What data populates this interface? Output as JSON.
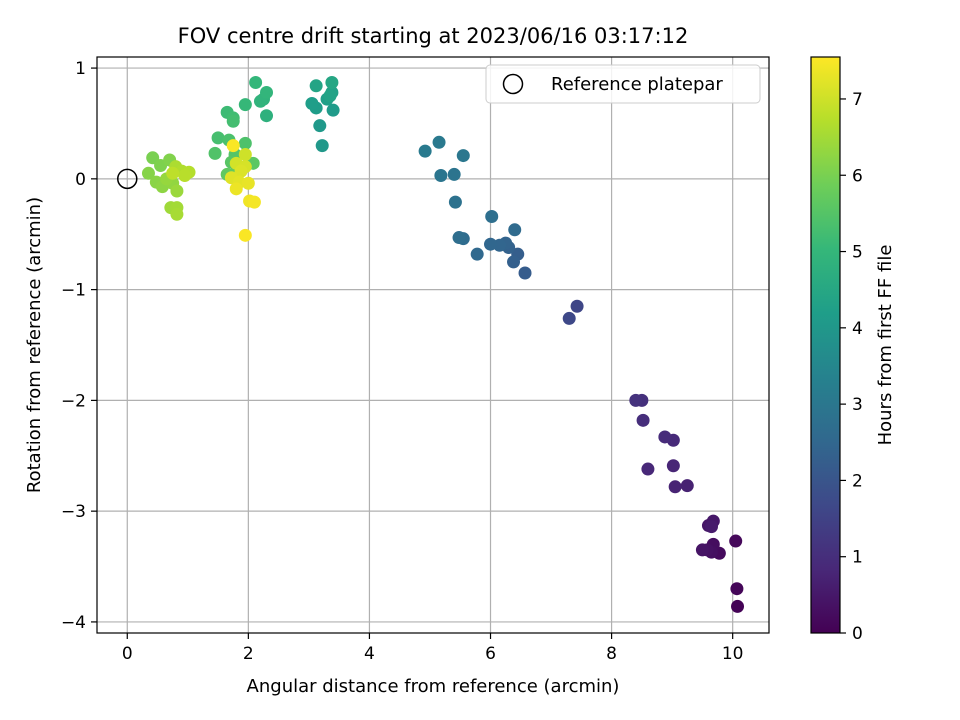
{
  "chart_data": {
    "type": "scatter",
    "title": "FOV centre drift starting at 2023/06/16 03:17:12",
    "xlabel": "Angular distance from reference (arcmin)",
    "ylabel": "Rotation from reference (arcmin)",
    "xlim": [
      -0.5,
      10.6
    ],
    "ylim": [
      -4.1,
      1.1
    ],
    "xticks": [
      0,
      2,
      4,
      6,
      8,
      10
    ],
    "xtick_labels": [
      "0",
      "2",
      "4",
      "6",
      "8",
      "10"
    ],
    "yticks": [
      1,
      0,
      -1,
      -2,
      -3,
      -4
    ],
    "ytick_labels": [
      "1",
      "0",
      "−1",
      "−2",
      "−3",
      "−4"
    ],
    "grid": true,
    "legend": {
      "location": "top-right",
      "entries": [
        {
          "label": "Reference platepar",
          "marker": "open-circle"
        }
      ]
    },
    "reference_point": {
      "x": 0,
      "y": 0
    },
    "colorbar": {
      "label": "Hours from first FF file",
      "colormap": "viridis",
      "range": [
        0,
        7.55
      ],
      "ticks": [
        0,
        1,
        2,
        3,
        4,
        5,
        6,
        7
      ],
      "tick_labels": [
        "0",
        "1",
        "2",
        "3",
        "4",
        "5",
        "6",
        "7"
      ]
    },
    "colormap_stops": [
      "#440154",
      "#482878",
      "#3e4989",
      "#31688e",
      "#26828e",
      "#1f9e89",
      "#35b779",
      "#6ece58",
      "#b5de2b",
      "#fde725"
    ],
    "series": [
      {
        "color_by": "hours",
        "points": [
          {
            "x": 10.08,
            "y": -3.86,
            "t": 0.05
          },
          {
            "x": 10.07,
            "y": -3.7,
            "t": 0.1
          },
          {
            "x": 10.05,
            "y": -3.27,
            "t": 0.15
          },
          {
            "x": 9.78,
            "y": -3.38,
            "t": 0.2
          },
          {
            "x": 9.68,
            "y": -3.3,
            "t": 0.25
          },
          {
            "x": 9.65,
            "y": -3.37,
            "t": 0.3
          },
          {
            "x": 9.58,
            "y": -3.35,
            "t": 0.35
          },
          {
            "x": 9.5,
            "y": -3.35,
            "t": 0.4
          },
          {
            "x": 9.6,
            "y": -3.13,
            "t": 0.45
          },
          {
            "x": 9.68,
            "y": -3.09,
            "t": 0.5
          },
          {
            "x": 9.65,
            "y": -3.14,
            "t": 0.55
          },
          {
            "x": 9.25,
            "y": -2.77,
            "t": 0.7
          },
          {
            "x": 9.05,
            "y": -2.78,
            "t": 0.75
          },
          {
            "x": 9.02,
            "y": -2.59,
            "t": 0.8
          },
          {
            "x": 8.6,
            "y": -2.62,
            "t": 0.85
          },
          {
            "x": 9.02,
            "y": -2.36,
            "t": 0.9
          },
          {
            "x": 8.88,
            "y": -2.33,
            "t": 0.95
          },
          {
            "x": 8.52,
            "y": -2.18,
            "t": 1.0
          },
          {
            "x": 8.5,
            "y": -2.0,
            "t": 1.05
          },
          {
            "x": 8.4,
            "y": -2.0,
            "t": 1.1
          },
          {
            "x": 7.43,
            "y": -1.15,
            "t": 1.6
          },
          {
            "x": 7.3,
            "y": -1.26,
            "t": 1.65
          },
          {
            "x": 6.57,
            "y": -0.85,
            "t": 2.2
          },
          {
            "x": 6.45,
            "y": -0.68,
            "t": 2.25
          },
          {
            "x": 6.38,
            "y": -0.75,
            "t": 2.3
          },
          {
            "x": 6.3,
            "y": -0.62,
            "t": 2.35
          },
          {
            "x": 6.25,
            "y": -0.58,
            "t": 2.4
          },
          {
            "x": 6.15,
            "y": -0.6,
            "t": 2.45
          },
          {
            "x": 6.0,
            "y": -0.59,
            "t": 2.5
          },
          {
            "x": 5.78,
            "y": -0.68,
            "t": 2.55
          },
          {
            "x": 6.4,
            "y": -0.46,
            "t": 2.6
          },
          {
            "x": 5.55,
            "y": -0.54,
            "t": 2.65
          },
          {
            "x": 5.48,
            "y": -0.53,
            "t": 2.7
          },
          {
            "x": 6.02,
            "y": -0.34,
            "t": 2.75
          },
          {
            "x": 5.42,
            "y": -0.21,
            "t": 2.85
          },
          {
            "x": 5.4,
            "y": 0.04,
            "t": 2.9
          },
          {
            "x": 5.18,
            "y": 0.03,
            "t": 2.95
          },
          {
            "x": 5.55,
            "y": 0.21,
            "t": 3.0
          },
          {
            "x": 5.15,
            "y": 0.33,
            "t": 3.05
          },
          {
            "x": 4.92,
            "y": 0.25,
            "t": 3.1
          },
          {
            "x": 3.22,
            "y": 0.3,
            "t": 4.0
          },
          {
            "x": 3.18,
            "y": 0.48,
            "t": 4.05
          },
          {
            "x": 3.4,
            "y": 0.62,
            "t": 4.1
          },
          {
            "x": 3.12,
            "y": 0.64,
            "t": 4.15
          },
          {
            "x": 3.05,
            "y": 0.68,
            "t": 4.2
          },
          {
            "x": 3.3,
            "y": 0.72,
            "t": 4.25
          },
          {
            "x": 3.38,
            "y": 0.78,
            "t": 4.3
          },
          {
            "x": 3.35,
            "y": 0.75,
            "t": 4.35
          },
          {
            "x": 3.12,
            "y": 0.84,
            "t": 4.4
          },
          {
            "x": 3.38,
            "y": 0.87,
            "t": 4.45
          },
          {
            "x": 2.3,
            "y": 0.57,
            "t": 4.8
          },
          {
            "x": 2.25,
            "y": 0.72,
            "t": 4.85
          },
          {
            "x": 2.2,
            "y": 0.7,
            "t": 4.9
          },
          {
            "x": 2.3,
            "y": 0.78,
            "t": 4.95
          },
          {
            "x": 2.12,
            "y": 0.87,
            "t": 5.0
          },
          {
            "x": 1.95,
            "y": 0.67,
            "t": 5.05
          },
          {
            "x": 1.65,
            "y": 0.6,
            "t": 5.15
          },
          {
            "x": 1.75,
            "y": 0.55,
            "t": 5.2
          },
          {
            "x": 1.75,
            "y": 0.52,
            "t": 5.25
          },
          {
            "x": 1.5,
            "y": 0.37,
            "t": 5.3
          },
          {
            "x": 1.68,
            "y": 0.35,
            "t": 5.35
          },
          {
            "x": 1.95,
            "y": 0.32,
            "t": 5.4
          },
          {
            "x": 1.45,
            "y": 0.23,
            "t": 5.45
          },
          {
            "x": 1.78,
            "y": 0.22,
            "t": 5.5
          },
          {
            "x": 1.72,
            "y": 0.15,
            "t": 5.55
          },
          {
            "x": 2.08,
            "y": 0.14,
            "t": 5.6
          },
          {
            "x": 1.65,
            "y": 0.04,
            "t": 5.65
          },
          {
            "x": 1.8,
            "y": 0.06,
            "t": 5.7
          },
          {
            "x": 0.42,
            "y": 0.19,
            "t": 6.0
          },
          {
            "x": 0.55,
            "y": 0.12,
            "t": 6.05
          },
          {
            "x": 0.7,
            "y": 0.17,
            "t": 6.1
          },
          {
            "x": 0.35,
            "y": 0.05,
            "t": 6.15
          },
          {
            "x": 0.48,
            "y": -0.03,
            "t": 6.2
          },
          {
            "x": 0.58,
            "y": -0.07,
            "t": 6.25
          },
          {
            "x": 0.75,
            "y": -0.04,
            "t": 6.3
          },
          {
            "x": 0.65,
            "y": 0.0,
            "t": 6.35
          },
          {
            "x": 0.82,
            "y": -0.11,
            "t": 6.4
          },
          {
            "x": 0.72,
            "y": -0.26,
            "t": 6.45
          },
          {
            "x": 0.82,
            "y": -0.26,
            "t": 6.5
          },
          {
            "x": 0.82,
            "y": -0.32,
            "t": 6.55
          },
          {
            "x": 0.8,
            "y": 0.11,
            "t": 6.6
          },
          {
            "x": 0.9,
            "y": 0.07,
            "t": 6.65
          },
          {
            "x": 1.02,
            "y": 0.06,
            "t": 6.7
          },
          {
            "x": 0.95,
            "y": 0.03,
            "t": 6.75
          },
          {
            "x": 0.75,
            "y": 0.05,
            "t": 6.8
          },
          {
            "x": 1.95,
            "y": 0.22,
            "t": 7.0
          },
          {
            "x": 1.8,
            "y": 0.14,
            "t": 7.05
          },
          {
            "x": 1.95,
            "y": 0.11,
            "t": 7.1
          },
          {
            "x": 1.88,
            "y": 0.07,
            "t": 7.15
          },
          {
            "x": 1.72,
            "y": 0.01,
            "t": 7.2
          },
          {
            "x": 1.85,
            "y": -0.03,
            "t": 7.25
          },
          {
            "x": 2.0,
            "y": -0.04,
            "t": 7.3
          },
          {
            "x": 1.8,
            "y": -0.09,
            "t": 7.35
          },
          {
            "x": 2.02,
            "y": -0.2,
            "t": 7.4
          },
          {
            "x": 2.1,
            "y": -0.21,
            "t": 7.45
          },
          {
            "x": 1.95,
            "y": -0.51,
            "t": 7.5
          },
          {
            "x": 1.75,
            "y": 0.3,
            "t": 7.52
          }
        ]
      }
    ]
  }
}
